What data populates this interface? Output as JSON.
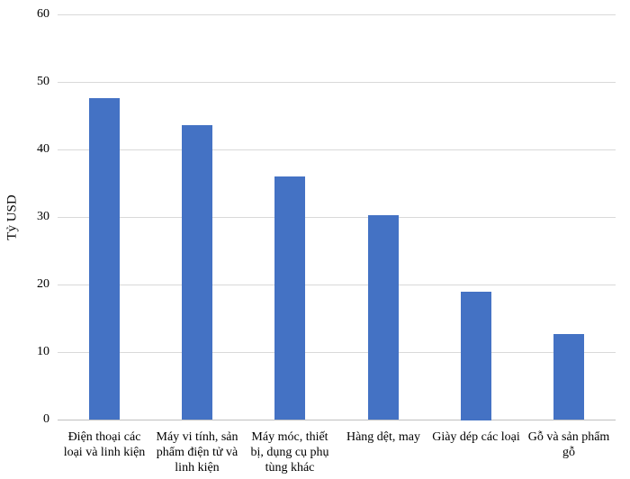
{
  "chart_data": {
    "type": "bar",
    "title": "",
    "xlabel": "",
    "ylabel": "Tỷ USD",
    "ylim": [
      0,
      60
    ],
    "yticks": [
      0,
      10,
      20,
      30,
      40,
      50,
      60
    ],
    "grid": true,
    "legend": false,
    "bar_color": "#4472C4",
    "categories": [
      "Điện thoại các loại và linh kiện",
      "Máy vi tính, sản phẩm điện tử và linh kiện",
      "Máy móc, thiết bị, dụng cụ phụ tùng khác",
      "Hàng dệt, may",
      "Giày dép các loại",
      "Gỗ và sản phẩm gỗ"
    ],
    "category_lines": [
      [
        "Điện thoại các",
        "loại và linh kiện"
      ],
      [
        "Máy vi tính, sản",
        "phẩm điện tử và",
        "linh kiện"
      ],
      [
        "Máy móc, thiết",
        "bị, dụng cụ phụ",
        "tùng khác"
      ],
      [
        "Hàng dệt, may"
      ],
      [
        "Giày dép các loại"
      ],
      [
        "Gỗ và sản phẩm",
        "gỗ"
      ]
    ],
    "values": [
      47.6,
      43.6,
      36.0,
      30.3,
      19.0,
      12.7
    ]
  },
  "colors": {
    "bar": "#4472C4",
    "gridline": "#D9D9D9",
    "axis_line": "#BFBFBF",
    "text": "#000000"
  }
}
